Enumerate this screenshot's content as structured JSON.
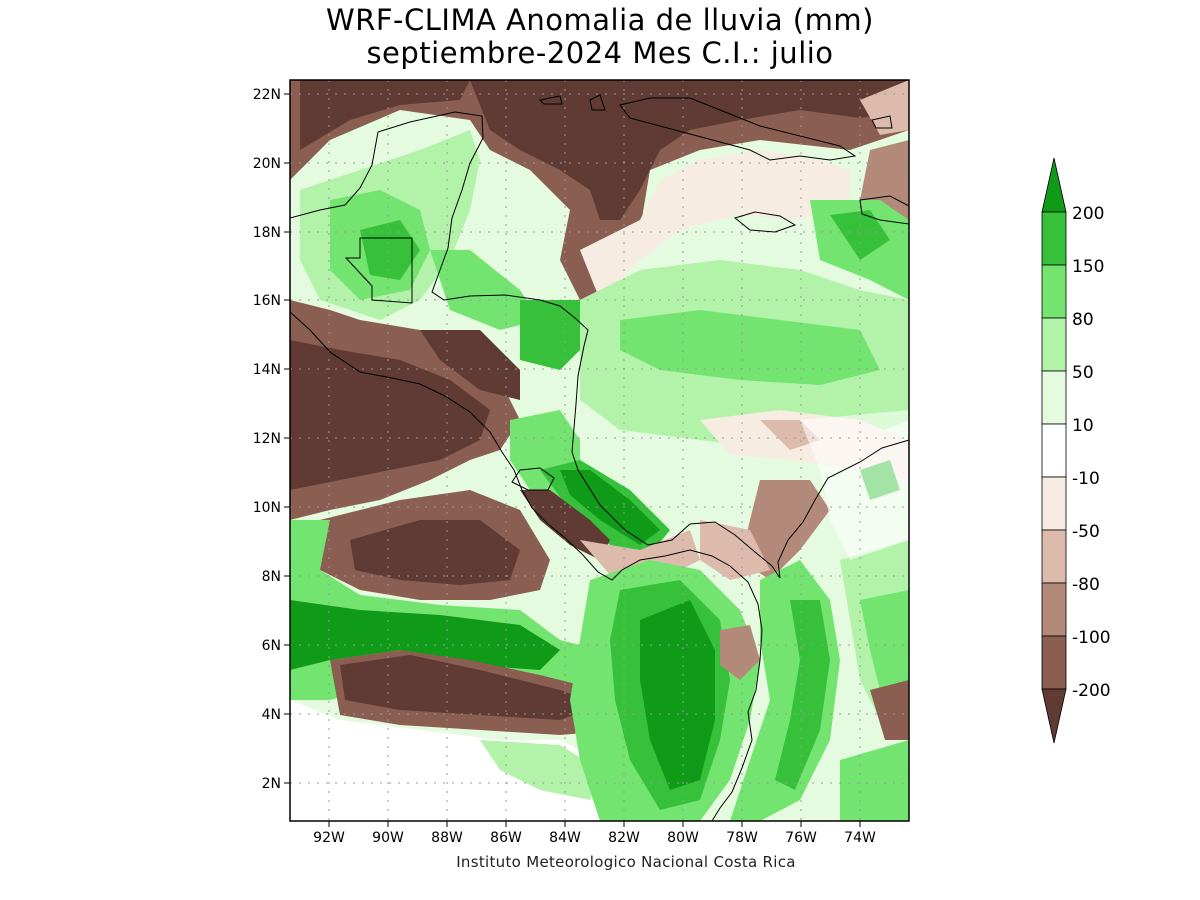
{
  "title_line1": "WRF-CLIMA Anomalia de lluvia (mm)",
  "title_line2": "septiembre-2024 Mes C.I.: julio",
  "credit": "Instituto Meteorologico Nacional Costa Rica",
  "map": {
    "lon_range": [
      -93.3,
      -72.3
    ],
    "lat_range": [
      1.0,
      22.4
    ],
    "lat_ticks": [
      "22N",
      "20N",
      "18N",
      "16N",
      "14N",
      "12N",
      "10N",
      "8N",
      "6N",
      "4N",
      "2N"
    ],
    "lon_ticks": [
      "92W",
      "90W",
      "88W",
      "86W",
      "84W",
      "82W",
      "80W",
      "78W",
      "76W",
      "74W"
    ]
  },
  "colorbar": {
    "levels": [
      "200",
      "150",
      "80",
      "50",
      "10",
      "-10",
      "-50",
      "-80",
      "-100",
      "-200"
    ],
    "colors": {
      "gt200": "#0f9a17",
      "150_200": "#37c13a",
      "80_150": "#73e46f",
      "50_80": "#b2f2a9",
      "10_50": "#e4fbe0",
      "m10_10": "#ffffff",
      "m50_m10": "#f6ece2",
      "m80_m50": "#dcbbad",
      "m100_m80": "#b38a7a",
      "m200_m100": "#8a5e51",
      "lt_m200": "#5f3b33"
    }
  }
}
